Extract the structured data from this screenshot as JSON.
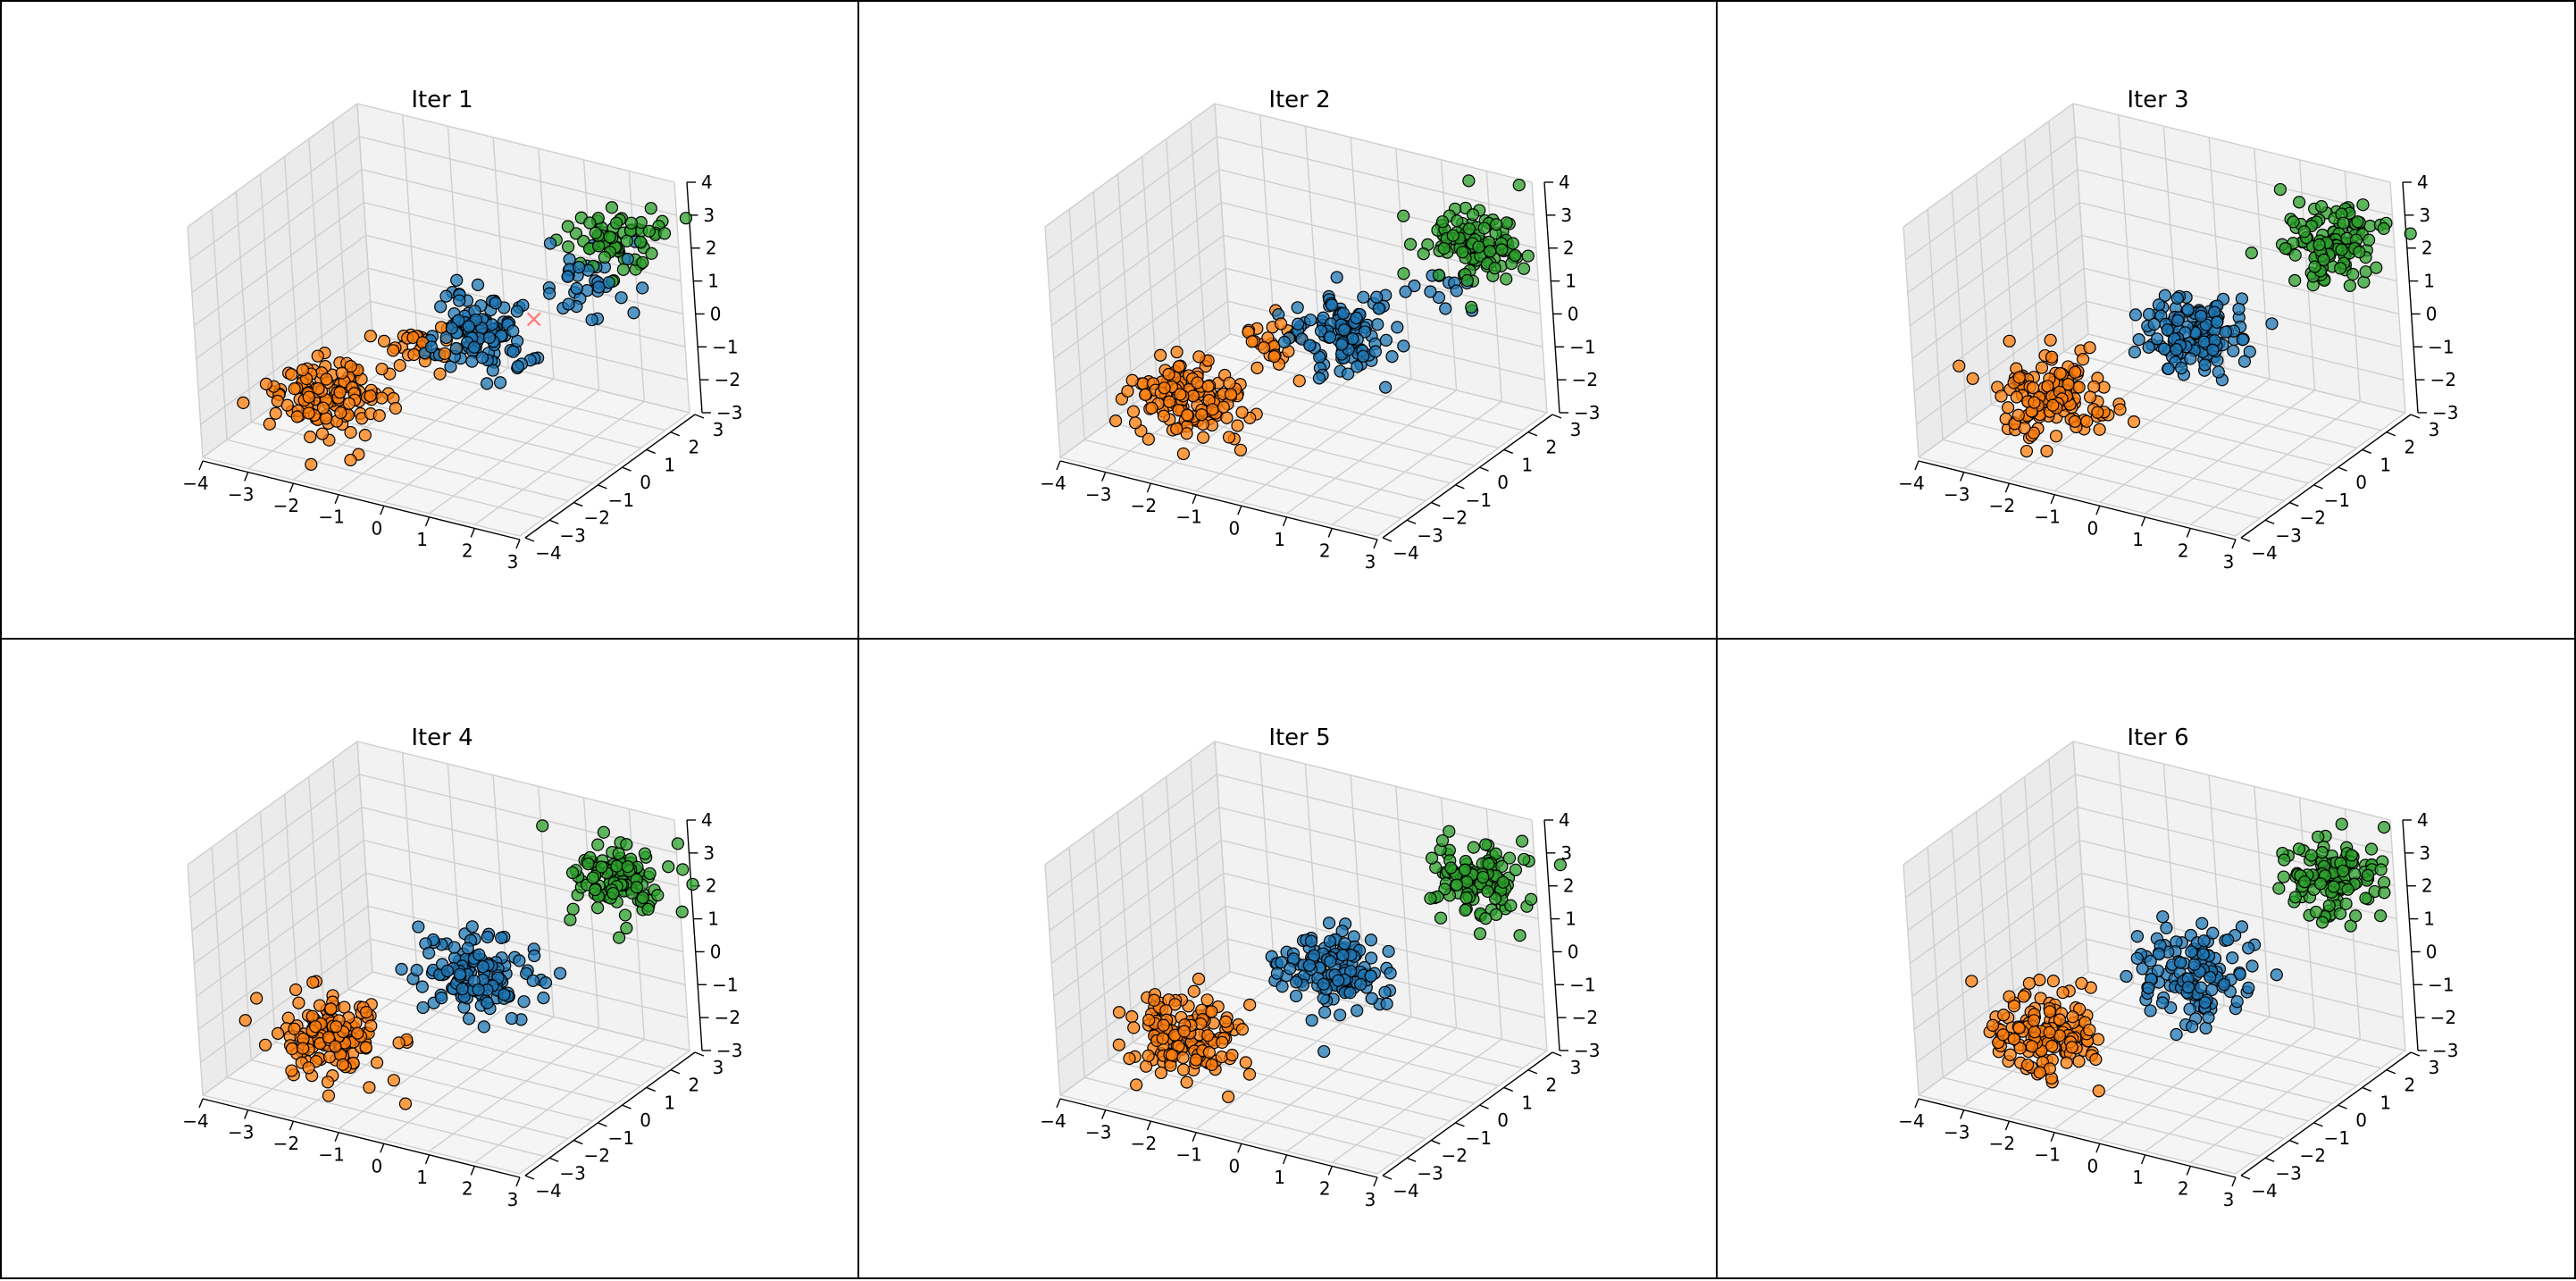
{
  "colors": {
    "cluster_a": "#1f77b4",
    "cluster_b": "#ff7f0e",
    "cluster_c": "#2ca02c",
    "centroid_marker": "#ff7f7f",
    "pane": "#f2f2f2",
    "grid": "#cfcfcf",
    "edge": "#000000"
  },
  "chart_data": [
    {
      "type": "scatter",
      "projection": "3d",
      "title": "Iter 1",
      "xlim": [
        -4,
        3
      ],
      "ylim": [
        -4,
        3
      ],
      "zlim": [
        -3,
        4
      ],
      "xticks": [
        "−4",
        "−3",
        "−2",
        "−1",
        "0",
        "1",
        "2",
        "3"
      ],
      "yticks": [
        "−4",
        "−3",
        "−2",
        "−1",
        "0",
        "1",
        "2",
        "3"
      ],
      "zticks": [
        "4",
        "3",
        "2",
        "1",
        "0",
        "−1",
        "−2",
        "−3"
      ],
      "clusters": [
        {
          "color": "cluster_b",
          "points": 130,
          "center": [
            -2.3,
            -1.8,
            -1.8
          ],
          "spread": 0.55
        },
        {
          "color": "cluster_b",
          "points": 30,
          "center": [
            -0.9,
            -0.6,
            -0.4
          ],
          "spread": 0.35
        },
        {
          "color": "cluster_a",
          "points": 110,
          "center": [
            0.2,
            0.0,
            0.0
          ],
          "spread": 0.5
        },
        {
          "color": "cluster_a",
          "points": 35,
          "center": [
            1.7,
            1.6,
            1.4
          ],
          "spread": 0.45
        },
        {
          "color": "cluster_c",
          "points": 70,
          "center": [
            2.1,
            2.2,
            2.3
          ],
          "spread": 0.5
        }
      ],
      "centroid_markers": [
        [
          0.9,
          0.8,
          0.3
        ]
      ]
    },
    {
      "type": "scatter",
      "projection": "3d",
      "title": "Iter 2",
      "xlim": [
        -4,
        3
      ],
      "ylim": [
        -4,
        3
      ],
      "zlim": [
        -3,
        4
      ],
      "xticks": [
        "−4",
        "−3",
        "−2",
        "−1",
        "0",
        "1",
        "2",
        "3"
      ],
      "yticks": [
        "−4",
        "−3",
        "−2",
        "−1",
        "0",
        "1",
        "2",
        "3"
      ],
      "zticks": [
        "4",
        "3",
        "2",
        "1",
        "0",
        "−1",
        "−2",
        "−3"
      ],
      "clusters": [
        {
          "color": "cluster_b",
          "points": 130,
          "center": [
            -2.3,
            -1.8,
            -1.8
          ],
          "spread": 0.55
        },
        {
          "color": "cluster_b",
          "points": 25,
          "center": [
            -0.9,
            -0.6,
            -0.4
          ],
          "spread": 0.35
        },
        {
          "color": "cluster_a",
          "points": 110,
          "center": [
            0.2,
            0.0,
            0.0
          ],
          "spread": 0.5
        },
        {
          "color": "cluster_a",
          "points": 12,
          "center": [
            1.6,
            1.5,
            0.9
          ],
          "spread": 0.35
        },
        {
          "color": "cluster_c",
          "points": 110,
          "center": [
            2.1,
            2.2,
            2.3
          ],
          "spread": 0.5
        }
      ],
      "centroid_markers": []
    },
    {
      "type": "scatter",
      "projection": "3d",
      "title": "Iter 3",
      "xlim": [
        -4,
        3
      ],
      "ylim": [
        -4,
        3
      ],
      "zlim": [
        -3,
        4
      ],
      "xticks": [
        "−4",
        "−3",
        "−2",
        "−1",
        "0",
        "1",
        "2",
        "3"
      ],
      "yticks": [
        "−4",
        "−3",
        "−2",
        "−1",
        "0",
        "1",
        "2",
        "3"
      ],
      "zticks": [
        "4",
        "3",
        "2",
        "1",
        "0",
        "−1",
        "−2",
        "−3"
      ],
      "clusters": [
        {
          "color": "cluster_b",
          "points": 140,
          "center": [
            -2.3,
            -1.8,
            -1.8
          ],
          "spread": 0.55
        },
        {
          "color": "cluster_a",
          "points": 130,
          "center": [
            0.1,
            -0.1,
            0.0
          ],
          "spread": 0.55
        },
        {
          "color": "cluster_c",
          "points": 120,
          "center": [
            2.1,
            2.2,
            2.3
          ],
          "spread": 0.5
        }
      ],
      "centroid_markers": []
    },
    {
      "type": "scatter",
      "projection": "3d",
      "title": "Iter 4",
      "xlim": [
        -4,
        3
      ],
      "ylim": [
        -4,
        3
      ],
      "zlim": [
        -3,
        4
      ],
      "xticks": [
        "−4",
        "−3",
        "−2",
        "−1",
        "0",
        "1",
        "2",
        "3"
      ],
      "yticks": [
        "−4",
        "−3",
        "−2",
        "−1",
        "0",
        "1",
        "2",
        "3"
      ],
      "zticks": [
        "4",
        "3",
        "2",
        "1",
        "0",
        "−1",
        "−2",
        "−3"
      ],
      "clusters": [
        {
          "color": "cluster_b",
          "points": 140,
          "center": [
            -2.3,
            -1.8,
            -1.8
          ],
          "spread": 0.55
        },
        {
          "color": "cluster_a",
          "points": 130,
          "center": [
            0.1,
            -0.1,
            0.0
          ],
          "spread": 0.55
        },
        {
          "color": "cluster_c",
          "points": 120,
          "center": [
            2.1,
            2.2,
            2.3
          ],
          "spread": 0.5
        }
      ],
      "centroid_markers": []
    },
    {
      "type": "scatter",
      "projection": "3d",
      "title": "Iter 5",
      "xlim": [
        -4,
        3
      ],
      "ylim": [
        -4,
        3
      ],
      "zlim": [
        -3,
        4
      ],
      "xticks": [
        "−4",
        "−3",
        "−2",
        "−1",
        "0",
        "1",
        "2",
        "3"
      ],
      "yticks": [
        "−4",
        "−3",
        "−2",
        "−1",
        "0",
        "1",
        "2",
        "3"
      ],
      "zticks": [
        "4",
        "3",
        "2",
        "1",
        "0",
        "−1",
        "−2",
        "−3"
      ],
      "clusters": [
        {
          "color": "cluster_b",
          "points": 140,
          "center": [
            -2.3,
            -1.8,
            -1.8
          ],
          "spread": 0.55
        },
        {
          "color": "cluster_a",
          "points": 130,
          "center": [
            0.1,
            -0.1,
            0.0
          ],
          "spread": 0.55
        },
        {
          "color": "cluster_c",
          "points": 120,
          "center": [
            2.1,
            2.2,
            2.3
          ],
          "spread": 0.5
        }
      ],
      "centroid_markers": []
    },
    {
      "type": "scatter",
      "projection": "3d",
      "title": "Iter 6",
      "xlim": [
        -4,
        3
      ],
      "ylim": [
        -4,
        3
      ],
      "zlim": [
        -3,
        4
      ],
      "xticks": [
        "−4",
        "−3",
        "−2",
        "−1",
        "0",
        "1",
        "2",
        "3"
      ],
      "yticks": [
        "−4",
        "−3",
        "−2",
        "−1",
        "0",
        "1",
        "2",
        "3"
      ],
      "zticks": [
        "4",
        "3",
        "2",
        "1",
        "0",
        "−1",
        "−2",
        "−3"
      ],
      "clusters": [
        {
          "color": "cluster_b",
          "points": 140,
          "center": [
            -2.3,
            -1.8,
            -1.8
          ],
          "spread": 0.55
        },
        {
          "color": "cluster_a",
          "points": 130,
          "center": [
            0.1,
            -0.1,
            0.0
          ],
          "spread": 0.55
        },
        {
          "color": "cluster_c",
          "points": 120,
          "center": [
            2.1,
            2.2,
            2.3
          ],
          "spread": 0.5
        }
      ],
      "centroid_markers": []
    }
  ]
}
